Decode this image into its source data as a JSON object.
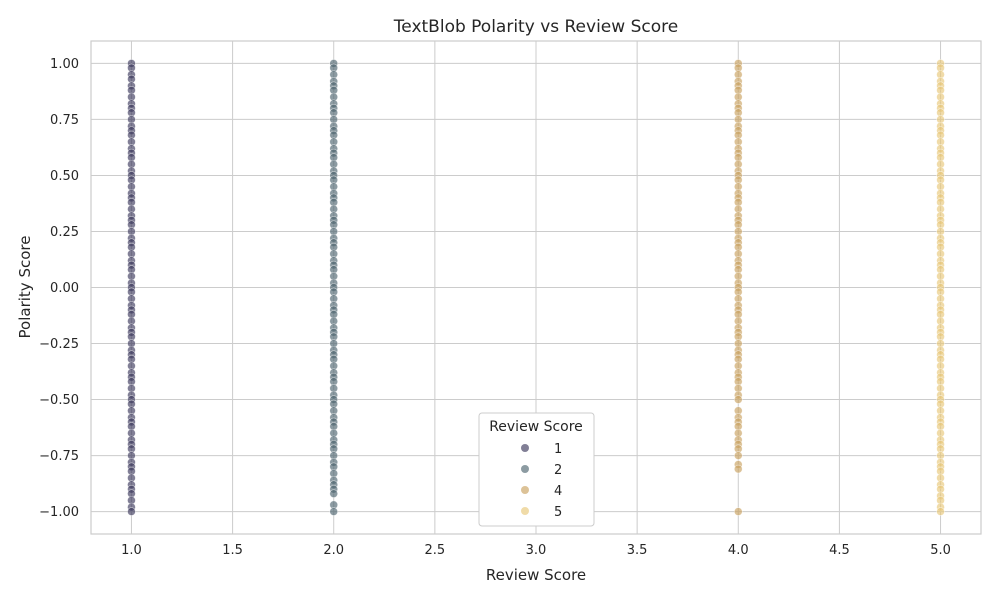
{
  "chart_data": {
    "type": "scatter",
    "title": "TextBlob Polarity vs Review Score",
    "xlabel": "Review Score",
    "ylabel": "Polarity Score",
    "xlim": [
      0.8,
      5.2
    ],
    "ylim": [
      -1.1,
      1.1
    ],
    "xticks": [
      1.0,
      1.5,
      2.0,
      2.5,
      3.0,
      3.5,
      4.0,
      4.5,
      5.0
    ],
    "xtick_labels": [
      "1.0",
      "1.5",
      "2.0",
      "2.5",
      "3.0",
      "3.5",
      "4.0",
      "4.5",
      "5.0"
    ],
    "yticks": [
      1.0,
      0.75,
      0.5,
      0.25,
      0.0,
      -0.25,
      -0.5,
      -0.75,
      -1.0
    ],
    "ytick_labels": [
      "1.00",
      "0.75",
      "0.50",
      "0.25",
      "0.00",
      "−0.25",
      "−0.50",
      "−0.75",
      "−1.00"
    ],
    "grid": true,
    "legend": {
      "title": "Review Score",
      "placement": "bottom-center"
    },
    "series": [
      {
        "name": "1",
        "color": "#3d3b5e",
        "x": 1.0,
        "y": [
          1.0,
          0.98,
          0.95,
          0.93,
          0.9,
          0.88,
          0.85,
          0.82,
          0.8,
          0.78,
          0.75,
          0.72,
          0.7,
          0.68,
          0.65,
          0.62,
          0.6,
          0.58,
          0.55,
          0.52,
          0.5,
          0.48,
          0.45,
          0.42,
          0.4,
          0.38,
          0.35,
          0.32,
          0.3,
          0.28,
          0.25,
          0.22,
          0.2,
          0.18,
          0.15,
          0.12,
          0.1,
          0.08,
          0.05,
          0.02,
          0.0,
          -0.02,
          -0.05,
          -0.08,
          -0.1,
          -0.12,
          -0.15,
          -0.18,
          -0.2,
          -0.22,
          -0.25,
          -0.28,
          -0.3,
          -0.32,
          -0.35,
          -0.38,
          -0.4,
          -0.42,
          -0.45,
          -0.48,
          -0.5,
          -0.52,
          -0.55,
          -0.58,
          -0.6,
          -0.62,
          -0.65,
          -0.68,
          -0.7,
          -0.72,
          -0.75,
          -0.78,
          -0.8,
          -0.82,
          -0.85,
          -0.88,
          -0.9,
          -0.92,
          -0.95,
          -0.98,
          -1.0
        ]
      },
      {
        "name": "2",
        "color": "#4e6570",
        "x": 2.0,
        "y": [
          1.0,
          0.98,
          0.95,
          0.92,
          0.9,
          0.88,
          0.85,
          0.82,
          0.8,
          0.78,
          0.75,
          0.72,
          0.7,
          0.68,
          0.65,
          0.62,
          0.6,
          0.58,
          0.55,
          0.52,
          0.5,
          0.48,
          0.45,
          0.42,
          0.4,
          0.38,
          0.35,
          0.32,
          0.3,
          0.28,
          0.25,
          0.22,
          0.2,
          0.18,
          0.15,
          0.12,
          0.1,
          0.08,
          0.05,
          0.02,
          0.0,
          -0.02,
          -0.05,
          -0.08,
          -0.1,
          -0.12,
          -0.15,
          -0.18,
          -0.2,
          -0.22,
          -0.25,
          -0.28,
          -0.3,
          -0.32,
          -0.35,
          -0.38,
          -0.4,
          -0.42,
          -0.45,
          -0.48,
          -0.5,
          -0.52,
          -0.55,
          -0.58,
          -0.6,
          -0.62,
          -0.65,
          -0.68,
          -0.7,
          -0.72,
          -0.75,
          -0.78,
          -0.8,
          -0.83,
          -0.86,
          -0.88,
          -0.9,
          -0.92,
          -0.97,
          -1.0
        ]
      },
      {
        "name": "4",
        "color": "#c9a25f",
        "x": 4.0,
        "y": [
          1.0,
          0.98,
          0.95,
          0.92,
          0.9,
          0.88,
          0.85,
          0.82,
          0.8,
          0.78,
          0.75,
          0.72,
          0.7,
          0.68,
          0.65,
          0.62,
          0.6,
          0.58,
          0.55,
          0.52,
          0.5,
          0.48,
          0.45,
          0.42,
          0.4,
          0.38,
          0.35,
          0.32,
          0.3,
          0.28,
          0.25,
          0.22,
          0.2,
          0.18,
          0.15,
          0.12,
          0.1,
          0.08,
          0.05,
          0.02,
          0.0,
          -0.02,
          -0.05,
          -0.08,
          -0.1,
          -0.12,
          -0.15,
          -0.18,
          -0.2,
          -0.22,
          -0.25,
          -0.28,
          -0.3,
          -0.32,
          -0.35,
          -0.38,
          -0.4,
          -0.42,
          -0.45,
          -0.48,
          -0.5,
          -0.55,
          -0.58,
          -0.6,
          -0.62,
          -0.65,
          -0.68,
          -0.7,
          -0.72,
          -0.75,
          -0.79,
          -0.81,
          -1.0
        ]
      },
      {
        "name": "5",
        "color": "#e8c77a",
        "x": 5.0,
        "y": [
          1.0,
          0.98,
          0.95,
          0.92,
          0.9,
          0.88,
          0.85,
          0.82,
          0.8,
          0.78,
          0.75,
          0.72,
          0.7,
          0.68,
          0.65,
          0.62,
          0.6,
          0.58,
          0.55,
          0.52,
          0.5,
          0.48,
          0.45,
          0.42,
          0.4,
          0.38,
          0.35,
          0.32,
          0.3,
          0.28,
          0.25,
          0.22,
          0.2,
          0.18,
          0.15,
          0.12,
          0.1,
          0.08,
          0.05,
          0.02,
          0.0,
          -0.02,
          -0.05,
          -0.08,
          -0.1,
          -0.12,
          -0.15,
          -0.18,
          -0.2,
          -0.22,
          -0.25,
          -0.28,
          -0.3,
          -0.32,
          -0.35,
          -0.38,
          -0.4,
          -0.42,
          -0.45,
          -0.48,
          -0.5,
          -0.52,
          -0.55,
          -0.58,
          -0.6,
          -0.62,
          -0.65,
          -0.68,
          -0.7,
          -0.72,
          -0.75,
          -0.78,
          -0.8,
          -0.82,
          -0.85,
          -0.88,
          -0.9,
          -0.93,
          -0.95,
          -0.98,
          -1.0
        ]
      }
    ]
  }
}
